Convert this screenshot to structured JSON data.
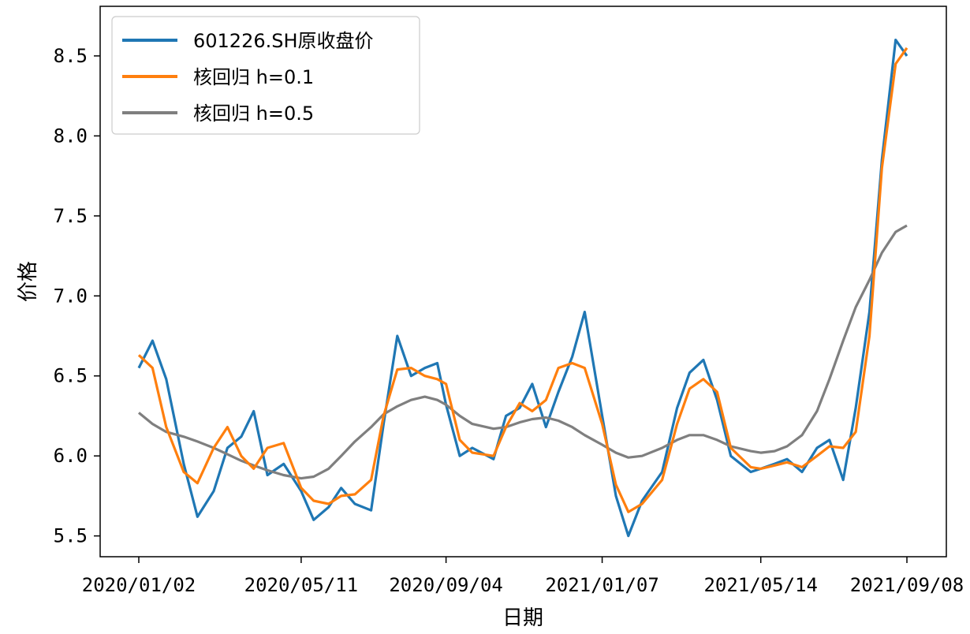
{
  "chart_data": {
    "type": "line",
    "xlabel": "日期",
    "ylabel": "价格",
    "x_tick_labels": [
      "2020/01/02",
      "2020/05/11",
      "2020/09/04",
      "2021/01/07",
      "2021/05/14",
      "2021/09/08"
    ],
    "y_tick_labels": [
      "5.5",
      "6.0",
      "6.5",
      "7.0",
      "7.5",
      "8.0",
      "8.5"
    ],
    "ylim": [
      5.37,
      8.81
    ],
    "grid": false,
    "legend_position": "top-left",
    "colors": {
      "raw": "#1f77b4",
      "h01": "#ff7f0e",
      "h05": "#7f7f7f"
    },
    "x": [
      "2020/01/02",
      "2020/01/13",
      "2020/01/24",
      "2020/02/07",
      "2020/02/18",
      "2020/03/02",
      "2020/03/13",
      "2020/03/24",
      "2020/04/03",
      "2020/04/14",
      "2020/04/27",
      "2020/05/11",
      "2020/05/21",
      "2020/06/02",
      "2020/06/12",
      "2020/06/23",
      "2020/07/06",
      "2020/07/16",
      "2020/07/27",
      "2020/08/07",
      "2020/08/18",
      "2020/08/28",
      "2020/09/04",
      "2020/09/15",
      "2020/09/25",
      "2020/10/12",
      "2020/10/22",
      "2020/11/02",
      "2020/11/12",
      "2020/11/23",
      "2020/12/03",
      "2020/12/14",
      "2020/12/24",
      "2021/01/07",
      "2021/01/18",
      "2021/01/28",
      "2021/02/08",
      "2021/02/24",
      "2021/03/08",
      "2021/03/18",
      "2021/03/29",
      "2021/04/09",
      "2021/04/20",
      "2021/05/06",
      "2021/05/14",
      "2021/05/25",
      "2021/06/04",
      "2021/06/16",
      "2021/06/28",
      "2021/07/08",
      "2021/07/19",
      "2021/07/29",
      "2021/08/09",
      "2021/08/19",
      "2021/08/30",
      "2021/09/08"
    ],
    "series": [
      {
        "name": "601226.SH原收盘价",
        "values": [
          6.55,
          6.72,
          6.48,
          5.95,
          5.62,
          5.78,
          6.05,
          6.12,
          6.28,
          5.88,
          5.95,
          5.78,
          5.6,
          5.68,
          5.8,
          5.7,
          5.66,
          6.2,
          6.75,
          6.5,
          6.55,
          6.58,
          6.32,
          6.0,
          6.05,
          5.98,
          6.25,
          6.3,
          6.45,
          6.18,
          6.4,
          6.62,
          6.9,
          6.25,
          5.75,
          5.5,
          5.72,
          5.9,
          6.3,
          6.52,
          6.6,
          6.35,
          6.0,
          5.9,
          5.92,
          5.95,
          5.98,
          5.9,
          6.05,
          6.1,
          5.85,
          6.3,
          6.9,
          7.85,
          8.6,
          8.5
        ]
      },
      {
        "name": "核回归 h=0.1",
        "values": [
          6.63,
          6.55,
          6.18,
          5.9,
          5.83,
          6.05,
          6.18,
          6.0,
          5.92,
          6.05,
          6.08,
          5.8,
          5.72,
          5.7,
          5.75,
          5.76,
          5.85,
          6.25,
          6.54,
          6.55,
          6.5,
          6.48,
          6.45,
          6.1,
          6.02,
          6.0,
          6.18,
          6.33,
          6.28,
          6.35,
          6.55,
          6.58,
          6.55,
          6.2,
          5.82,
          5.65,
          5.7,
          5.85,
          6.2,
          6.42,
          6.48,
          6.4,
          6.05,
          5.93,
          5.92,
          5.94,
          5.96,
          5.93,
          6.0,
          6.06,
          6.05,
          6.15,
          6.75,
          7.8,
          8.45,
          8.55
        ]
      },
      {
        "name": "核回归 h=0.5",
        "values": [
          6.27,
          6.2,
          6.15,
          6.12,
          6.09,
          6.05,
          6.01,
          5.97,
          5.94,
          5.91,
          5.88,
          5.86,
          5.87,
          5.92,
          6.0,
          6.09,
          6.18,
          6.26,
          6.31,
          6.35,
          6.37,
          6.35,
          6.32,
          6.25,
          6.2,
          6.17,
          6.18,
          6.21,
          6.23,
          6.24,
          6.22,
          6.18,
          6.13,
          6.07,
          6.02,
          5.99,
          6.0,
          6.05,
          6.1,
          6.13,
          6.13,
          6.1,
          6.06,
          6.03,
          6.02,
          6.03,
          6.06,
          6.13,
          6.28,
          6.48,
          6.72,
          6.93,
          7.1,
          7.27,
          7.4,
          7.44
        ]
      }
    ]
  }
}
